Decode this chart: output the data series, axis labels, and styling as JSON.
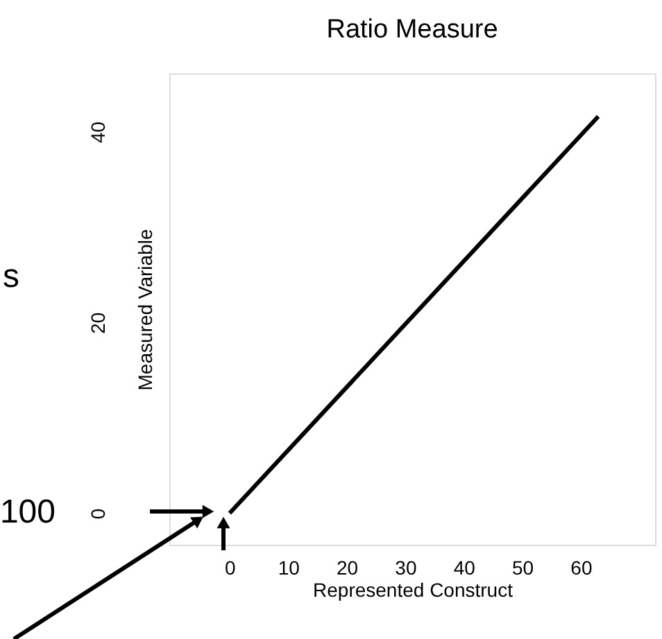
{
  "chart_data": {
    "type": "line",
    "title": "Ratio Measure",
    "xlabel": "Represented Construct",
    "ylabel": "Measured Variable",
    "x": [
      0,
      63
    ],
    "series": [
      {
        "color": "#000000",
        "values": [
          0,
          41.6
        ]
      }
    ],
    "xlim": [
      -10.3,
      72.7
    ],
    "ylim": [
      -3.3,
      46.1
    ],
    "xticks": [
      0,
      10,
      20,
      30,
      40,
      50,
      60
    ],
    "yticks": [
      0,
      20,
      40
    ],
    "grid": false,
    "annotations": [
      "s",
      "100"
    ]
  }
}
